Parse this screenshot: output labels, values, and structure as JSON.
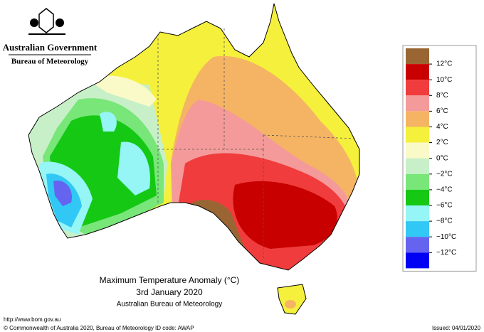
{
  "header": {
    "government": "Australian Government",
    "agency": "Bureau of Meteorology"
  },
  "legend": {
    "colors": [
      "#996633",
      "#c80000",
      "#f03c3c",
      "#f59a9a",
      "#f5b464",
      "#f5f03c",
      "#fafac8",
      "#c8f0c8",
      "#78e678",
      "#14c814",
      "#96f5f5",
      "#32c8f5",
      "#6464f0",
      "#0000f5"
    ],
    "labels": [
      "12°C",
      "10°C",
      "8°C",
      "6°C",
      "4°C",
      "2°C",
      "0°C",
      "−2°C",
      "−4°C",
      "−6°C",
      "−8°C",
      "−10°C",
      "−12°C"
    ]
  },
  "caption": {
    "title": "Maximum Temperature Anomaly (°C)",
    "date": "3rd January 2020",
    "source": "Australian Bureau of Meteorology"
  },
  "footer": {
    "url": "http://www.bom.gov.au",
    "copyright": "© Commonwealth of Australia 2020, Bureau of Meteorology",
    "id_code": "ID code: AWAP",
    "issued": "Issued: 04/01/2020"
  }
}
